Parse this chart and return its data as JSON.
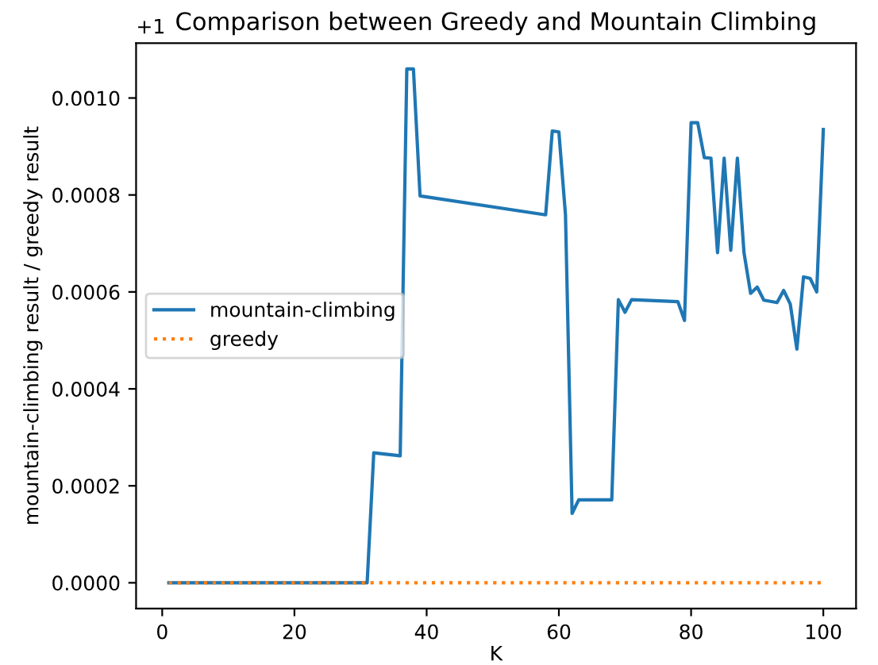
{
  "chart_data": {
    "type": "line",
    "title": "Comparison between Greedy and Mountain Climbing",
    "xlabel": "K",
    "ylabel": "mountain-climbing result / greedy result",
    "annotations": [
      "+1"
    ],
    "series": [
      {
        "name": "mountain-climbing",
        "color": "#1f77b4",
        "line_style": "solid",
        "x": [
          1,
          31,
          32,
          36,
          37,
          38,
          39,
          58,
          59,
          60,
          61,
          62,
          63,
          68,
          69,
          70,
          71,
          78,
          79,
          80,
          81,
          82,
          83,
          84,
          85,
          86,
          87,
          88,
          89,
          90,
          91,
          93,
          94,
          95,
          96,
          97,
          98,
          99,
          100
        ],
        "values": [
          0,
          0,
          0.000268,
          0.000262,
          0.00106,
          0.00106,
          0.000798,
          0.000759,
          0.000932,
          0.00093,
          0.000759,
          0.000143,
          0.000171,
          0.000171,
          0.000584,
          0.000558,
          0.000584,
          0.00058,
          0.000541,
          0.000949,
          0.000949,
          0.000877,
          0.000876,
          0.000681,
          0.000876,
          0.000686,
          0.000876,
          0.000681,
          0.000597,
          0.00061,
          0.000583,
          0.000578,
          0.000603,
          0.000575,
          0.000482,
          0.000631,
          0.000628,
          0.0006,
          0.000935
        ]
      },
      {
        "name": "greedy",
        "color": "#ff7f0e",
        "line_style": "dotted",
        "x": [
          1,
          100
        ],
        "values": [
          0,
          0
        ]
      }
    ],
    "xlim": [
      -3.95,
      104.95
    ],
    "xticks": [
      0,
      20,
      40,
      60,
      80,
      100
    ],
    "ylim": [
      -5.3e-05,
      0.001113
    ],
    "yticks": [
      {
        "value": 0,
        "label": "0.0000"
      },
      {
        "value": 0.0002,
        "label": "0.0002"
      },
      {
        "value": 0.0004,
        "label": "0.0004"
      },
      {
        "value": 0.0006,
        "label": "0.0006"
      },
      {
        "value": 0.0008,
        "label": "0.0008"
      },
      {
        "value": 0.001,
        "label": "0.0010"
      }
    ],
    "grid": false,
    "legend": "center left"
  }
}
